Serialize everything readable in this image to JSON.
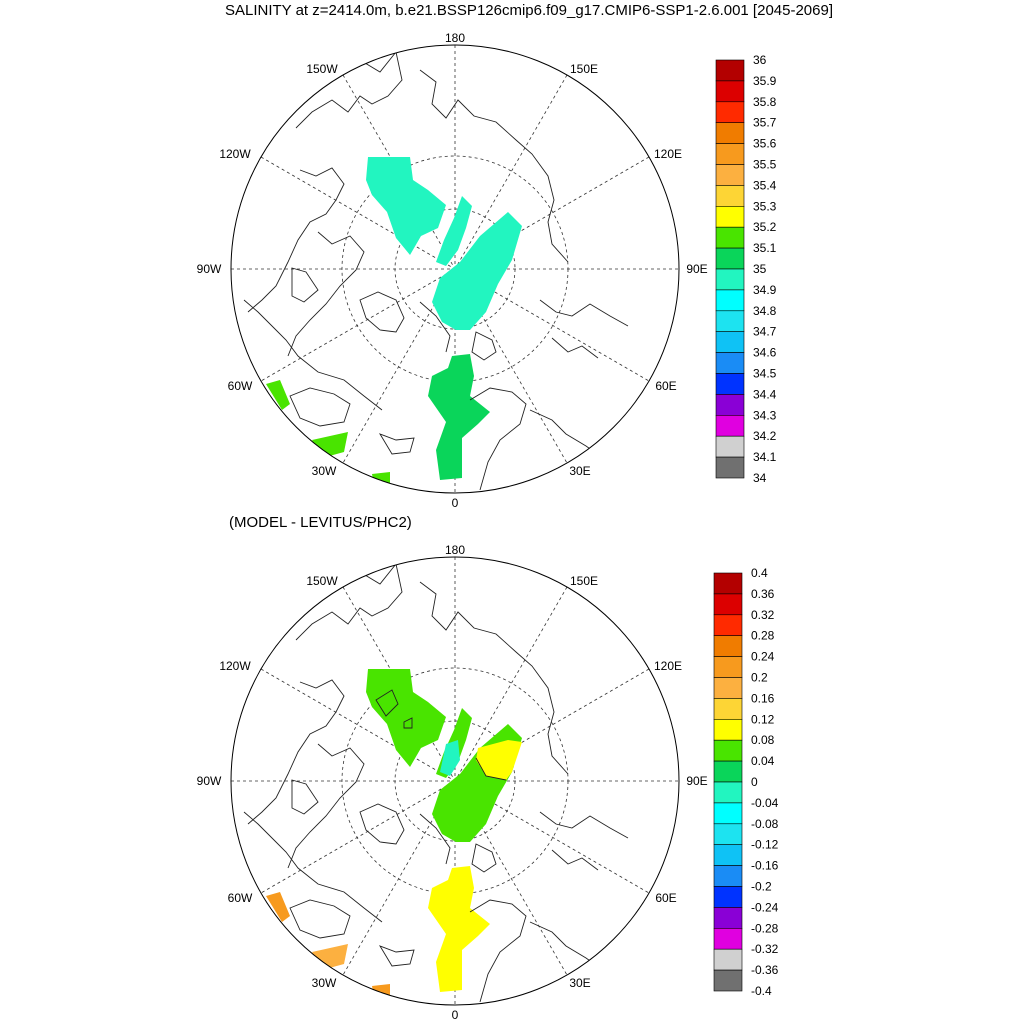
{
  "title": "SALINITY at z=2414.0m, b.e21.BSSP126cmip6.f09_g17.CMIP6-SSP1-2.6.001 [2045-2069]",
  "diff_title": "(MODEL - LEVITUS/PHC2)",
  "lon_labels": {
    "n180": "180",
    "w150": "150W",
    "e150": "150E",
    "w120": "120W",
    "e120": "120E",
    "w90": "90W",
    "e90": "90E",
    "w60": "60W",
    "e60": "60E",
    "w30": "30W",
    "e30": "30E",
    "n0": "0"
  },
  "colorbars": {
    "salinity": {
      "labels": [
        "36",
        "35.9",
        "35.8",
        "35.7",
        "35.6",
        "35.5",
        "35.4",
        "35.3",
        "35.2",
        "35.1",
        "35",
        "34.9",
        "34.8",
        "34.7",
        "34.6",
        "34.5",
        "34.4",
        "34.3",
        "34.2",
        "34.1",
        "34"
      ],
      "colors": [
        "#b30000",
        "#dc0000",
        "#ff2a00",
        "#f07c00",
        "#f79a1e",
        "#fcb040",
        "#fdd535",
        "#ffff00",
        "#49e400",
        "#0ad55a",
        "#22f5c0",
        "#00ffff",
        "#1de3f0",
        "#0fc2f5",
        "#1a8cf5",
        "#0033ff",
        "#8a00d6",
        "#e000e0",
        "#d0d0d0",
        "#707070"
      ]
    },
    "difference": {
      "labels": [
        "0.4",
        "0.36",
        "0.32",
        "0.28",
        "0.24",
        "0.2",
        "0.16",
        "0.12",
        "0.08",
        "0.04",
        "0",
        "-0.04",
        "-0.08",
        "-0.12",
        "-0.16",
        "-0.2",
        "-0.24",
        "-0.28",
        "-0.32",
        "-0.36",
        "-0.4"
      ],
      "colors": [
        "#b30000",
        "#dc0000",
        "#ff2a00",
        "#f07c00",
        "#f79a1e",
        "#fcb040",
        "#fdd535",
        "#ffff00",
        "#49e400",
        "#0ad55a",
        "#22f5c0",
        "#00ffff",
        "#1de3f0",
        "#0fc2f5",
        "#1a8cf5",
        "#0033ff",
        "#8a00d6",
        "#e000e0",
        "#d0d0d0",
        "#707070"
      ]
    }
  },
  "fields": {
    "salinity_top": {
      "pacific_side_blob": "#22f5c0",
      "atlantic_inflow": "#0ad55a",
      "nordic_patches": "#49e400"
    },
    "difference_bottom": {
      "arctic_interior": "#49e400",
      "central_patch": "#22f5c0",
      "eurasian_basin": "#ffff00",
      "nordic_patches": "#f79a1e"
    }
  }
}
